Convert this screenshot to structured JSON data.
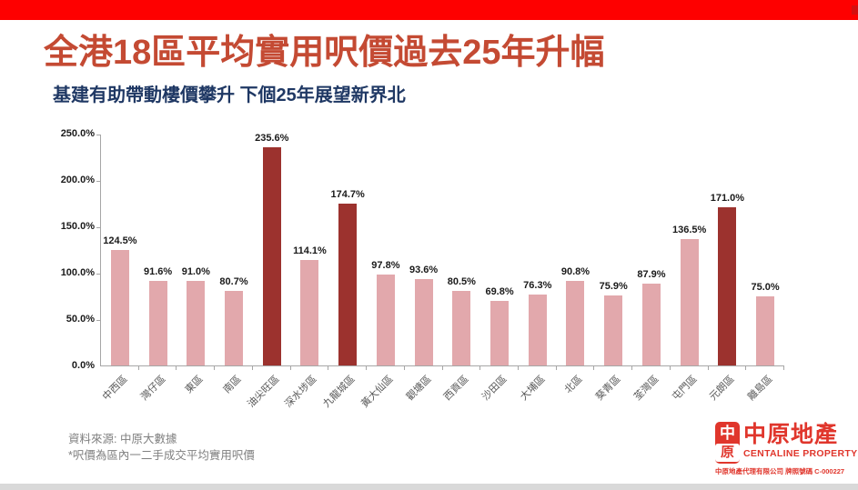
{
  "title": "全港18區平均實用呎價過去25年升幅",
  "subtitle": "基建有助帶動樓價攀升  下個25年展望新界北",
  "chart_data": {
    "type": "bar",
    "title": "全港18區平均實用呎價過去25年升幅",
    "categories": [
      "中西區",
      "灣仔區",
      "東區",
      "南區",
      "油尖旺區",
      "深水埗區",
      "九龍城區",
      "黃大仙區",
      "觀塘區",
      "西貢區",
      "沙田區",
      "大埔區",
      "北區",
      "葵青區",
      "荃灣區",
      "屯門區",
      "元朗區",
      "離島區"
    ],
    "values": [
      124.5,
      91.6,
      91.0,
      80.7,
      235.6,
      114.1,
      174.7,
      97.8,
      93.6,
      80.5,
      69.8,
      76.3,
      90.8,
      75.9,
      87.9,
      136.5,
      171.0,
      75.0
    ],
    "value_labels": [
      "124.5%",
      "91.6%",
      "91.0%",
      "80.7%",
      "235.6%",
      "114.1%",
      "174.7%",
      "97.8%",
      "93.6%",
      "80.5%",
      "69.8%",
      "76.3%",
      "90.8%",
      "75.9%",
      "87.9%",
      "136.5%",
      "171.0%",
      "75.0%"
    ],
    "highlight_indices": [
      4,
      6,
      16
    ],
    "yticks": [
      0,
      50,
      100,
      150,
      200,
      250
    ],
    "ytick_labels": [
      "0.0%",
      "50.0%",
      "100.0%",
      "150.0%",
      "200.0%",
      "250.0%"
    ],
    "ylim": [
      0,
      250
    ],
    "grid": "off",
    "legend": "none",
    "colors": {
      "bar": "#e2a8ac",
      "highlight": "#9c322e",
      "axis": "#a6a6a6"
    }
  },
  "footer": {
    "source": "資料來源: 中原大數據",
    "note": "*呎價為區內一二手成交平均實用呎價"
  },
  "logo": {
    "seal_top": "中",
    "seal_bottom": "原",
    "name_cn": "中原地產",
    "name_en": "CENTALINE PROPERTY",
    "license": "中原地產代理有限公司  牌照號碼 C-000227"
  },
  "accent_colors": {
    "top_bar": "#fe0000",
    "title": "#c44a33",
    "subtitle": "#1f3864",
    "logo": "#e0362c"
  }
}
